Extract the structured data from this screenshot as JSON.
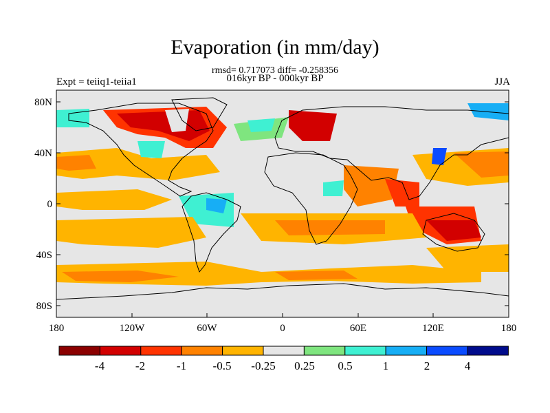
{
  "title": "Evaporation (in mm/day)",
  "stats_line": "rmsd= 0.717073 diff= -0.258356",
  "period_line": "016kyr BP - 000kyr BP",
  "experiment_label": "Expt = teiiq1-teiia1",
  "season_label": "JJA",
  "lat_labels": [
    "80N",
    "40N",
    "0",
    "40S",
    "80S"
  ],
  "lon_labels": [
    "180",
    "120W",
    "60W",
    "0",
    "60E",
    "120E",
    "180"
  ],
  "colorbar": {
    "labels": [
      "-4",
      "-2",
      "-1",
      "-0.5",
      "-0.25",
      "0.25",
      "0.5",
      "1",
      "2",
      "4"
    ],
    "colors": [
      "#8b0000",
      "#d20000",
      "#ff3300",
      "#ff8200",
      "#ffb400",
      "#e6e6e6",
      "#7fe57f",
      "#3ff0d2",
      "#17aef5",
      "#0a4bff",
      "#000c8c"
    ]
  },
  "colors": {
    "land": "#e6e6e6",
    "ocean_default": "#e6e6e6",
    "coast": "#000000"
  }
}
